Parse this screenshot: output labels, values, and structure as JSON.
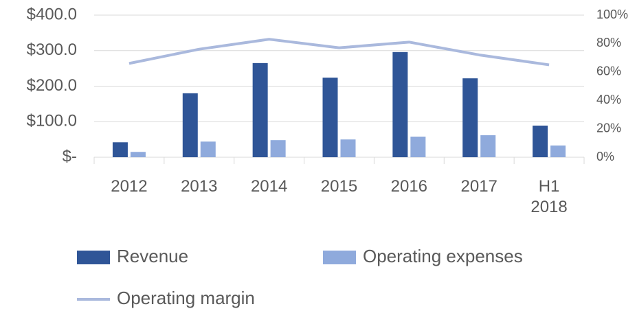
{
  "chart_data": {
    "type": "bar",
    "categories": [
      "2012",
      "2013",
      "2014",
      "2015",
      "2016",
      "2017",
      "H1 2018"
    ],
    "series": [
      {
        "name": "Revenue",
        "color": "#2f5597",
        "values": [
          42,
          180,
          265,
          224,
          296,
          222,
          89
        ]
      },
      {
        "name": "Operating expenses",
        "color": "#8faadc",
        "values": [
          15,
          44,
          48,
          50,
          58,
          62,
          33
        ]
      },
      {
        "name": "Operating margin",
        "color": "#aab9dd",
        "type": "line",
        "axis": "y2",
        "values": [
          66,
          76,
          83,
          77,
          81,
          72,
          65
        ]
      }
    ],
    "ylim": [
      0,
      400
    ],
    "yticks": [
      {
        "value": 0,
        "label": "$-"
      },
      {
        "value": 100,
        "label": "$100.0"
      },
      {
        "value": 200,
        "label": "$200.0"
      },
      {
        "value": 300,
        "label": "$300.0"
      },
      {
        "value": 400,
        "label": "$400.0"
      }
    ],
    "y2lim": [
      0,
      100
    ],
    "y2ticks": [
      {
        "value": 0,
        "label": "0%"
      },
      {
        "value": 20,
        "label": "20%"
      },
      {
        "value": 40,
        "label": "40%"
      },
      {
        "value": 60,
        "label": "60%"
      },
      {
        "value": 80,
        "label": "80%"
      },
      {
        "value": 100,
        "label": "100%"
      }
    ],
    "grid": true,
    "legend": "bottom"
  }
}
